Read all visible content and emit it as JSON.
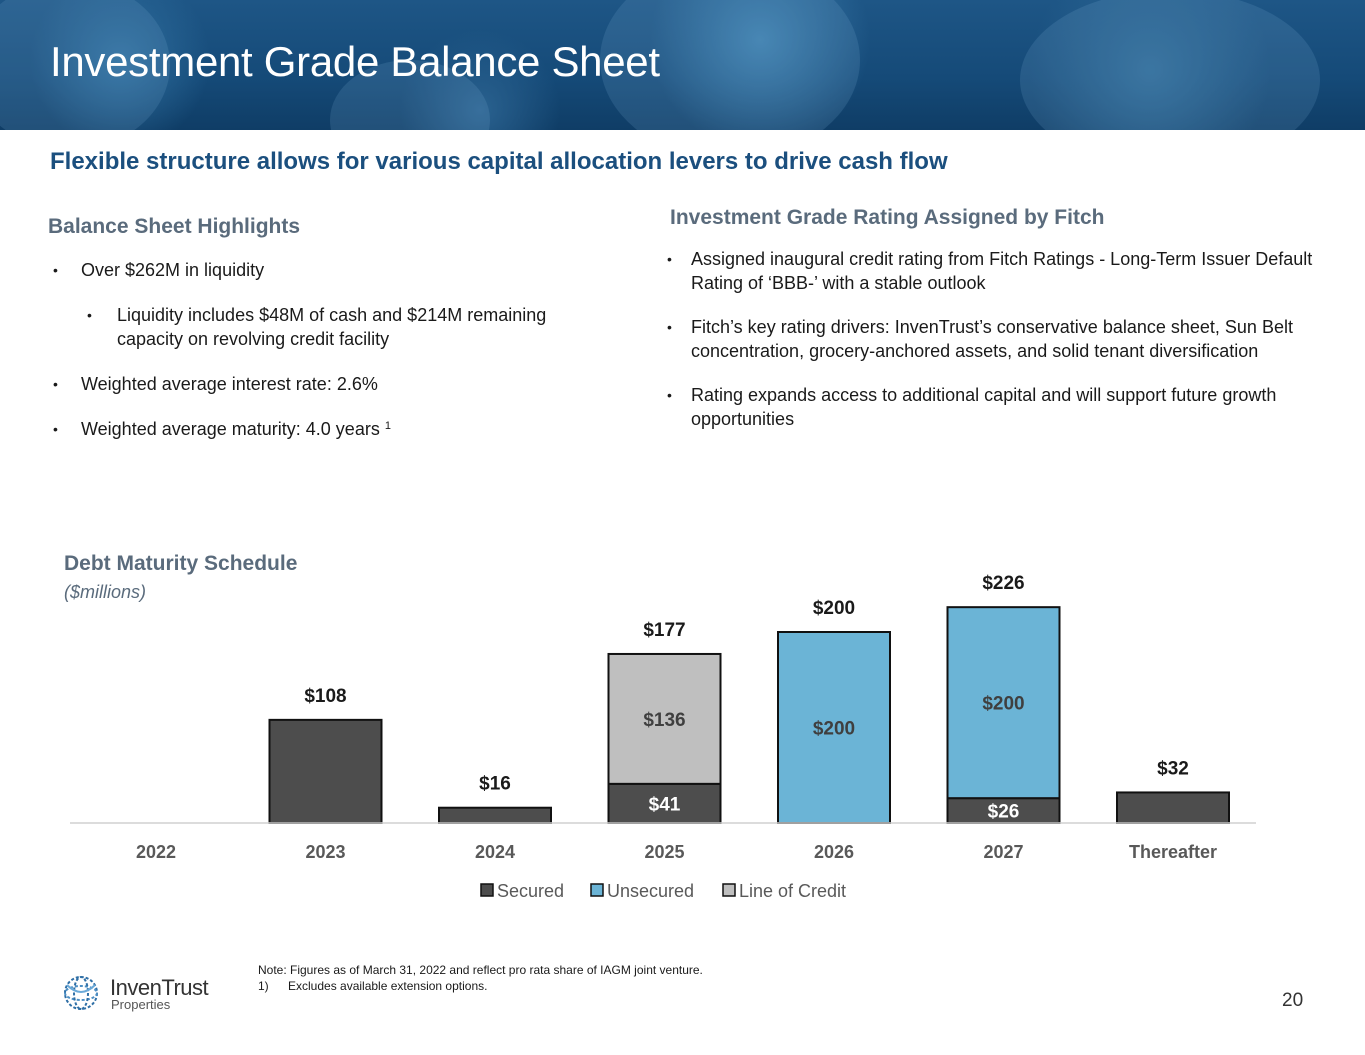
{
  "header": {
    "title": "Investment Grade Balance Sheet"
  },
  "subtitle": "Flexible structure allows for various capital allocation levers to drive cash flow",
  "left": {
    "heading": "Balance Sheet Highlights",
    "bullets": [
      "Over $262M in liquidity",
      "Liquidity includes $48M of cash and $214M remaining capacity on revolving credit facility",
      "Weighted average interest rate: 2.6%",
      "Weighted average maturity: 4.0 years"
    ],
    "footnote_marker": "1"
  },
  "right": {
    "heading": "Investment Grade Rating Assigned by Fitch",
    "bullets": [
      "Assigned inaugural credit rating from Fitch Ratings - Long-Term Issuer Default Rating of ‘BBB-’ with a stable outlook",
      "Fitch’s key rating drivers: InvenTrust’s conservative balance sheet, Sun Belt concentration, grocery-anchored assets, and solid tenant diversification",
      "Rating expands access to additional capital and will support future growth opportunities"
    ]
  },
  "chart_data": {
    "type": "bar",
    "stacked": true,
    "title": "Debt Maturity Schedule",
    "unit_label": "($millions)",
    "categories": [
      "2022",
      "2023",
      "2024",
      "2025",
      "2026",
      "2027",
      "Thereafter"
    ],
    "series": [
      {
        "name": "Secured",
        "color": "#4d4d4d",
        "values": [
          0,
          108,
          16,
          41,
          0,
          26,
          32
        ]
      },
      {
        "name": "Unsecured",
        "color": "#6bb4d6",
        "values": [
          0,
          0,
          0,
          0,
          200,
          200,
          0
        ]
      },
      {
        "name": "Line of Credit",
        "color": "#bfbfbf",
        "values": [
          0,
          0,
          0,
          136,
          0,
          0,
          0
        ]
      }
    ],
    "segment_labels": [
      {
        "category": "2025",
        "series": "Secured",
        "text": "$41"
      },
      {
        "category": "2025",
        "series": "Line of Credit",
        "text": "$136"
      },
      {
        "category": "2026",
        "series": "Unsecured",
        "text": "$200"
      },
      {
        "category": "2027",
        "series": "Secured",
        "text": "$26"
      },
      {
        "category": "2027",
        "series": "Unsecured",
        "text": "$200"
      }
    ],
    "total_labels": [
      {
        "category": "2023",
        "text": "$108"
      },
      {
        "category": "2024",
        "text": "$16"
      },
      {
        "category": "2025",
        "text": "$177"
      },
      {
        "category": "2026",
        "text": "$200"
      },
      {
        "category": "2027",
        "text": "$226"
      },
      {
        "category": "Thereafter",
        "text": "$32"
      }
    ],
    "ylim": [
      0,
      240
    ],
    "legend_position": "bottom"
  },
  "footer": {
    "note": "Note: Figures as of March 31, 2022 and reflect pro rata share of IAGM joint venture.",
    "footnote_num": "1)",
    "footnote_text": "Excludes available extension options.",
    "logo_name": "InvenTrust",
    "logo_sub": "Properties",
    "page_number": "20"
  }
}
